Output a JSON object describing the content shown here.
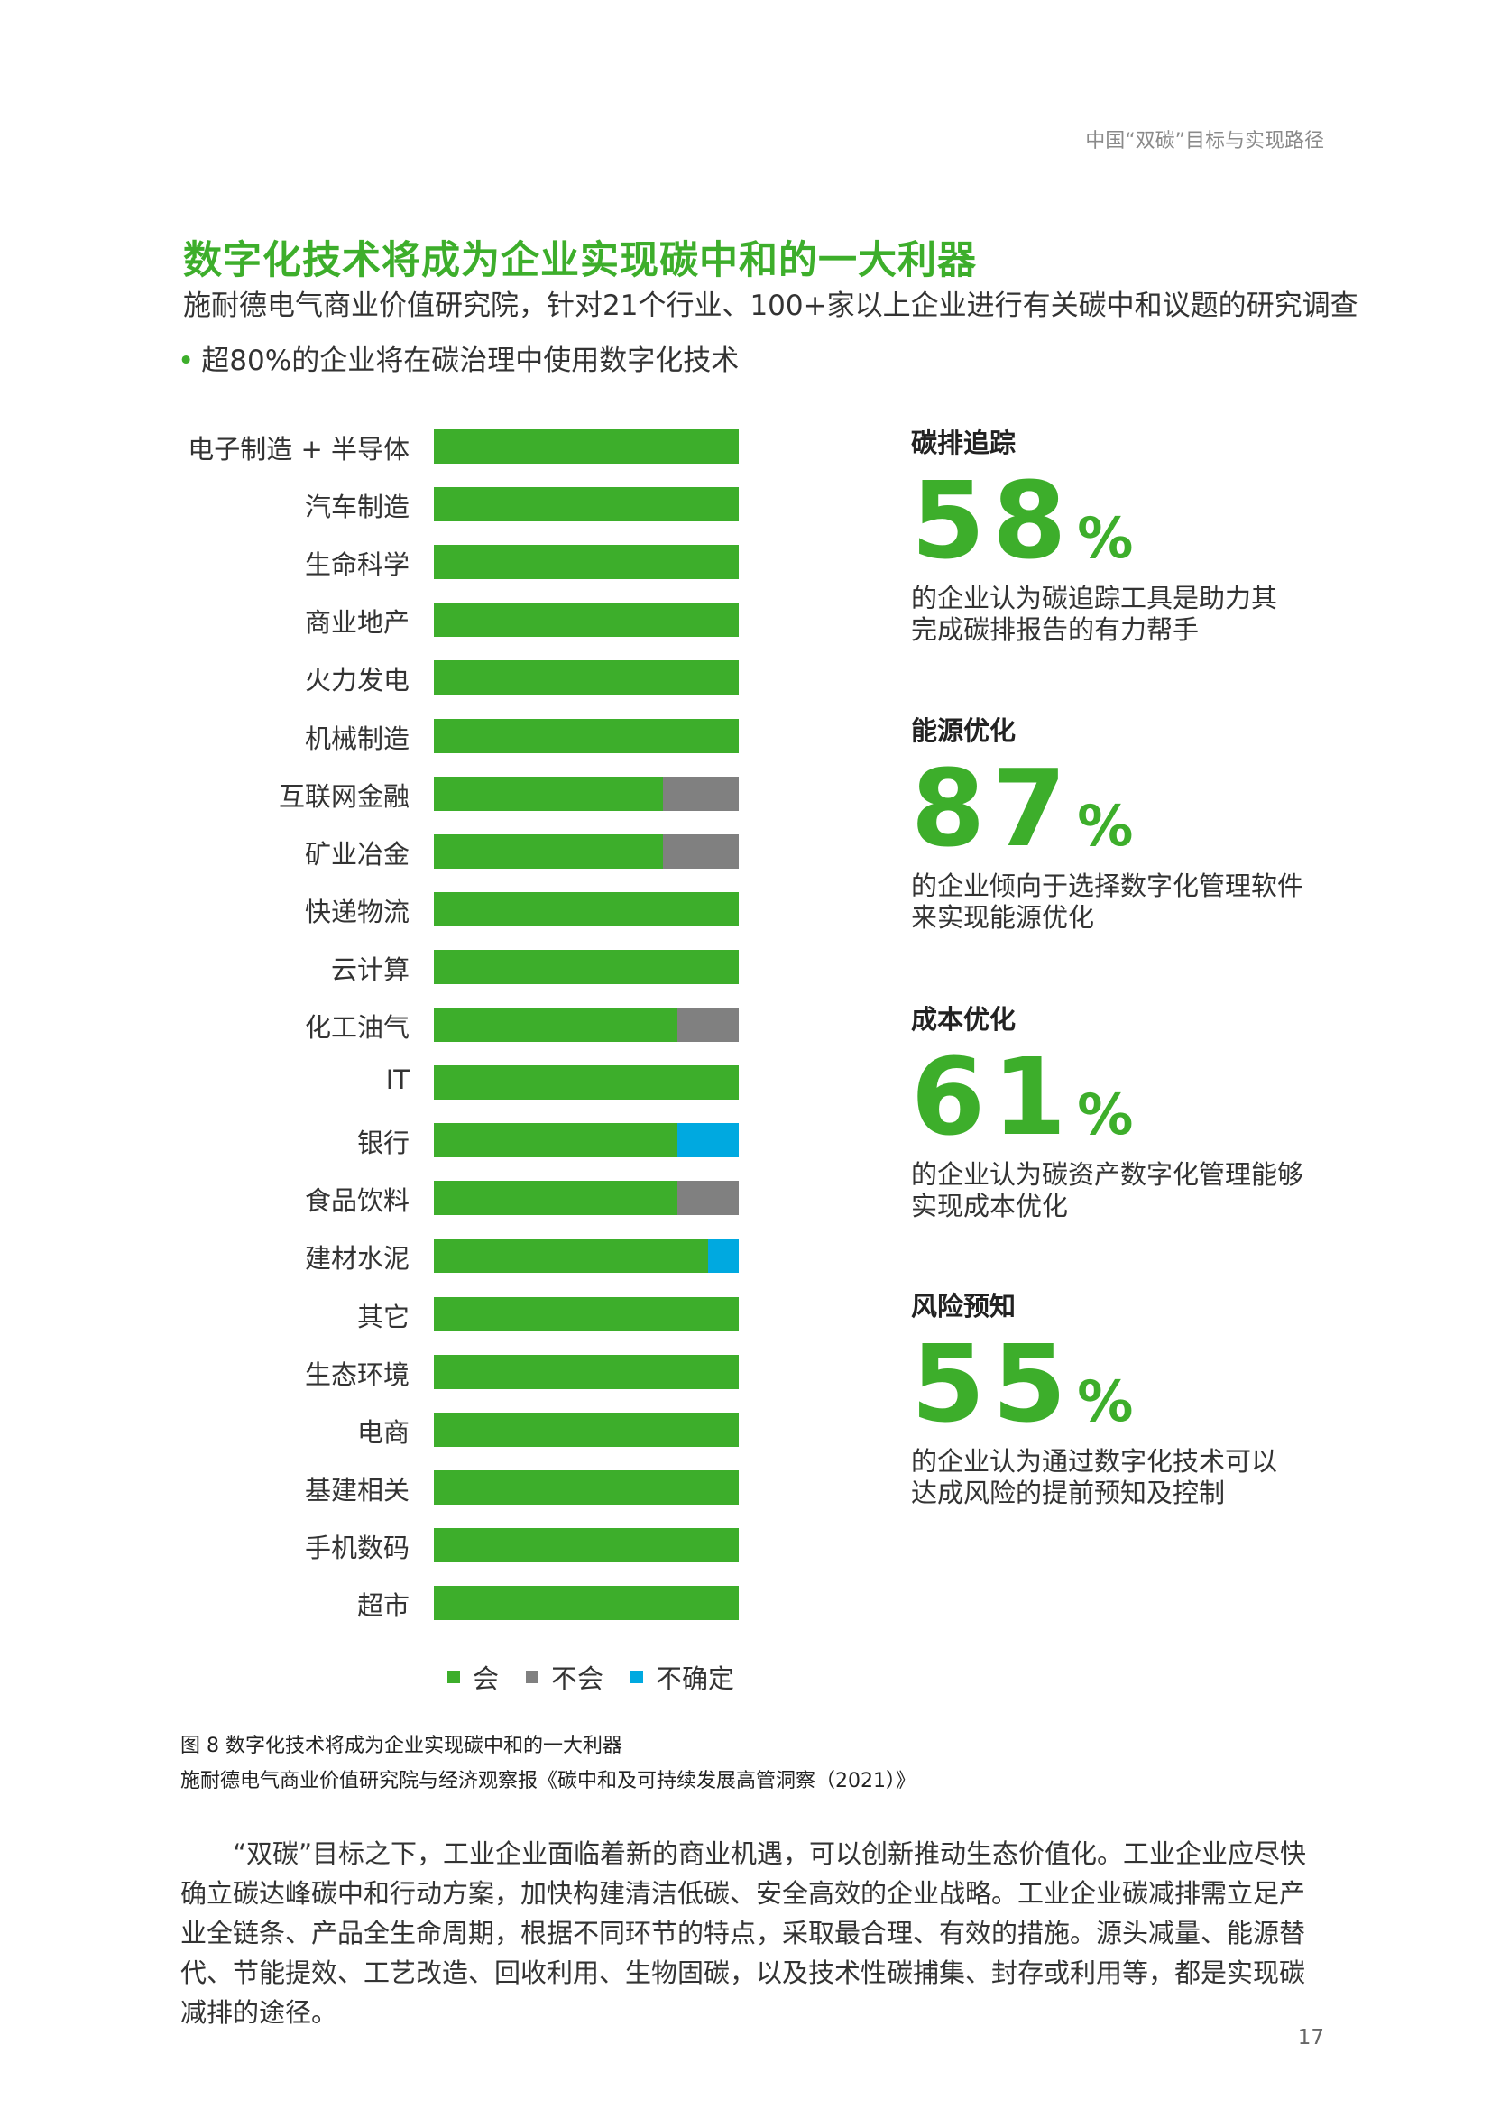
{
  "header": {
    "running_title": "中国“双碳”目标与实现路径"
  },
  "title": "数字化技术将成为企业实现碳中和的一大利器",
  "subtitle": "施耐德电气商业价值研究院，针对21个行业、100+家以上企业进行有关碳中和议题的研究调查",
  "bullet": "超80%的企业将在碳治理中使用数字化技术",
  "colors": {
    "green": "#3dae2b",
    "gray": "#808080",
    "blue": "#00a9e0"
  },
  "chart_data": {
    "type": "bar",
    "orientation": "horizontal",
    "stacked": true,
    "categories": [
      "电子制造 + 半导体",
      "汽车制造",
      "生命科学",
      "商业地产",
      "火力发电",
      "机械制造",
      "互联网金融",
      "矿业冶金",
      "快递物流",
      "云计算",
      "化工油气",
      "IT",
      "银行",
      "食品饮料",
      "建材水泥",
      "其它",
      "生态环境",
      "电商",
      "基建相关",
      "手机数码",
      "超市"
    ],
    "series": [
      {
        "name": "会",
        "color": "#3dae2b",
        "values": [
          100,
          100,
          100,
          100,
          100,
          100,
          75,
          75,
          100,
          100,
          80,
          100,
          80,
          80,
          90,
          100,
          100,
          100,
          100,
          100,
          100
        ]
      },
      {
        "name": "不会",
        "color": "#808080",
        "values": [
          0,
          0,
          0,
          0,
          0,
          0,
          25,
          25,
          0,
          0,
          20,
          0,
          0,
          20,
          0,
          0,
          0,
          0,
          0,
          0,
          0
        ]
      },
      {
        "name": "不确定",
        "color": "#00a9e0",
        "values": [
          0,
          0,
          0,
          0,
          0,
          0,
          0,
          0,
          0,
          0,
          0,
          0,
          20,
          0,
          10,
          0,
          0,
          0,
          0,
          0,
          0
        ]
      }
    ],
    "xlim": [
      0,
      100
    ],
    "legend": "bottom",
    "grid": false
  },
  "legend": [
    {
      "label": "会",
      "color": "#3dae2b"
    },
    {
      "label": "不会",
      "color": "#808080"
    },
    {
      "label": "不确定",
      "color": "#00a9e0"
    }
  ],
  "stats": [
    {
      "title": "碳排追踪",
      "value": "58",
      "unit": "%",
      "desc1": "的企业认为碳追踪工具是助力其",
      "desc2": "完成碳排报告的有力帮手"
    },
    {
      "title": "能源优化",
      "value": "87",
      "unit": "%",
      "desc1": "的企业倾向于选择数字化管理软件",
      "desc2": "来实现能源优化"
    },
    {
      "title": "成本优化",
      "value": "61",
      "unit": "%",
      "desc1": "的企业认为碳资产数字化管理能够",
      "desc2": "实现成本优化"
    },
    {
      "title": "风险预知",
      "value": "55",
      "unit": "%",
      "desc1": "的企业认为通过数字化技术可以",
      "desc2": "达成风险的提前预知及控制"
    }
  ],
  "caption": {
    "line1": "图 8 数字化技术将成为企业实现碳中和的一大利器",
    "line2": "施耐德电气商业价值研究院与经济观察报《碳中和及可持续发展高管洞察（2021）》"
  },
  "body": "“双碳”目标之下，工业企业面临着新的商业机遇，可以创新推动生态价值化。工业企业应尽快确立碳达峰碳中和行动方案，加快构建清洁低碳、安全高效的企业战略。工业企业碳减排需立足产业全链条、产品全生命周期，根据不同环节的特点，采取最合理、有效的措施。源头减量、能源替代、节能提效、工艺改造、回收利用、生物固碳，以及技术性碳捕集、封存或利用等，都是实现碳减排的途径。",
  "page_number": "17"
}
